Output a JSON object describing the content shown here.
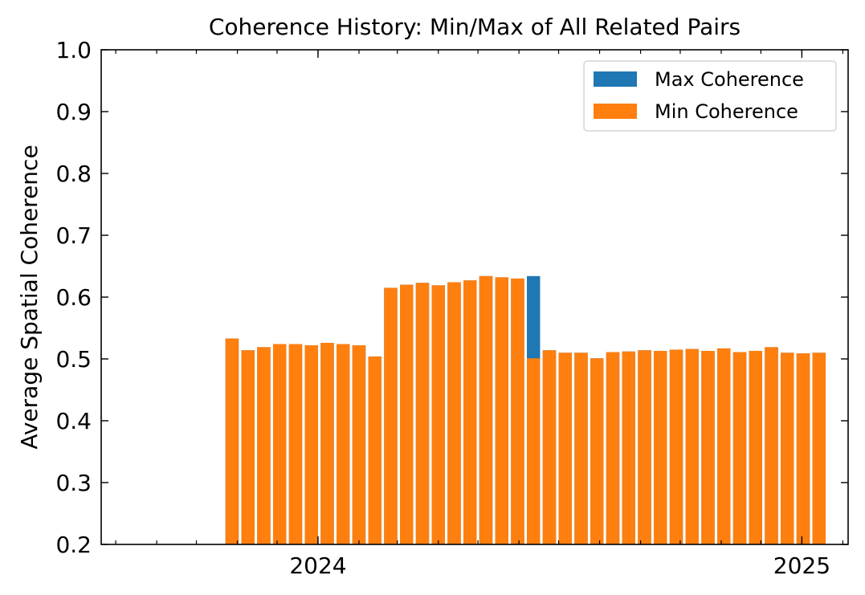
{
  "chart_data": {
    "type": "bar",
    "title": "Coherence History: Min/Max of All Related Pairs",
    "xlabel": "",
    "ylabel": "Average Spatial Coherence",
    "ylim": [
      0.2,
      1.0
    ],
    "yticks": [
      "0.2",
      "0.3",
      "0.4",
      "0.5",
      "0.6",
      "0.7",
      "0.8",
      "0.9",
      "1.0"
    ],
    "xlim": [
      "2023-07-21",
      "2025-02-05"
    ],
    "xticks": [
      {
        "date": "2024-01-01",
        "label": "2024"
      },
      {
        "date": "2025-01-01",
        "label": "2025"
      }
    ],
    "legend": {
      "position": "top-right"
    },
    "colors": {
      "max": "#1f77b4",
      "min": "#ff7f0e"
    },
    "series": [
      {
        "name": "Max Coherence",
        "x": [
          "2023-10-28",
          "2023-11-09",
          "2023-11-21",
          "2023-12-03",
          "2023-12-15",
          "2023-12-27",
          "2024-01-08",
          "2024-01-20",
          "2024-02-01",
          "2024-02-13",
          "2024-02-25",
          "2024-03-08",
          "2024-03-20",
          "2024-04-01",
          "2024-04-13",
          "2024-04-25",
          "2024-05-07",
          "2024-05-19",
          "2024-05-31",
          "2024-06-12",
          "2024-06-24",
          "2024-07-06",
          "2024-07-18",
          "2024-07-30",
          "2024-08-11",
          "2024-08-23",
          "2024-09-04",
          "2024-09-16",
          "2024-09-28",
          "2024-10-10",
          "2024-10-22",
          "2024-11-03",
          "2024-11-15",
          "2024-11-27",
          "2024-12-09",
          "2024-12-21",
          "2025-01-02",
          "2025-01-14"
        ],
        "values": [
          0.533,
          0.514,
          0.519,
          0.524,
          0.524,
          0.522,
          0.526,
          0.524,
          0.522,
          0.504,
          0.615,
          0.62,
          0.623,
          0.619,
          0.624,
          0.627,
          0.634,
          0.632,
          0.63,
          0.634,
          0.514,
          0.51,
          0.51,
          0.501,
          0.511,
          0.512,
          0.514,
          0.513,
          0.515,
          0.516,
          0.513,
          0.517,
          0.511,
          0.513,
          0.519,
          0.51,
          0.509,
          0.51
        ]
      },
      {
        "name": "Min Coherence",
        "x": [
          "2023-10-28",
          "2023-11-09",
          "2023-11-21",
          "2023-12-03",
          "2023-12-15",
          "2023-12-27",
          "2024-01-08",
          "2024-01-20",
          "2024-02-01",
          "2024-02-13",
          "2024-02-25",
          "2024-03-08",
          "2024-03-20",
          "2024-04-01",
          "2024-04-13",
          "2024-04-25",
          "2024-05-07",
          "2024-05-19",
          "2024-05-31",
          "2024-06-12",
          "2024-06-24",
          "2024-07-06",
          "2024-07-18",
          "2024-07-30",
          "2024-08-11",
          "2024-08-23",
          "2024-09-04",
          "2024-09-16",
          "2024-09-28",
          "2024-10-10",
          "2024-10-22",
          "2024-11-03",
          "2024-11-15",
          "2024-11-27",
          "2024-12-09",
          "2024-12-21",
          "2025-01-02",
          "2025-01-14"
        ],
        "values": [
          0.533,
          0.514,
          0.519,
          0.524,
          0.524,
          0.522,
          0.526,
          0.524,
          0.522,
          0.504,
          0.615,
          0.62,
          0.623,
          0.619,
          0.624,
          0.627,
          0.634,
          0.632,
          0.63,
          0.501,
          0.514,
          0.51,
          0.51,
          0.501,
          0.511,
          0.512,
          0.514,
          0.513,
          0.515,
          0.516,
          0.513,
          0.517,
          0.511,
          0.513,
          0.519,
          0.51,
          0.509,
          0.51
        ]
      }
    ]
  }
}
